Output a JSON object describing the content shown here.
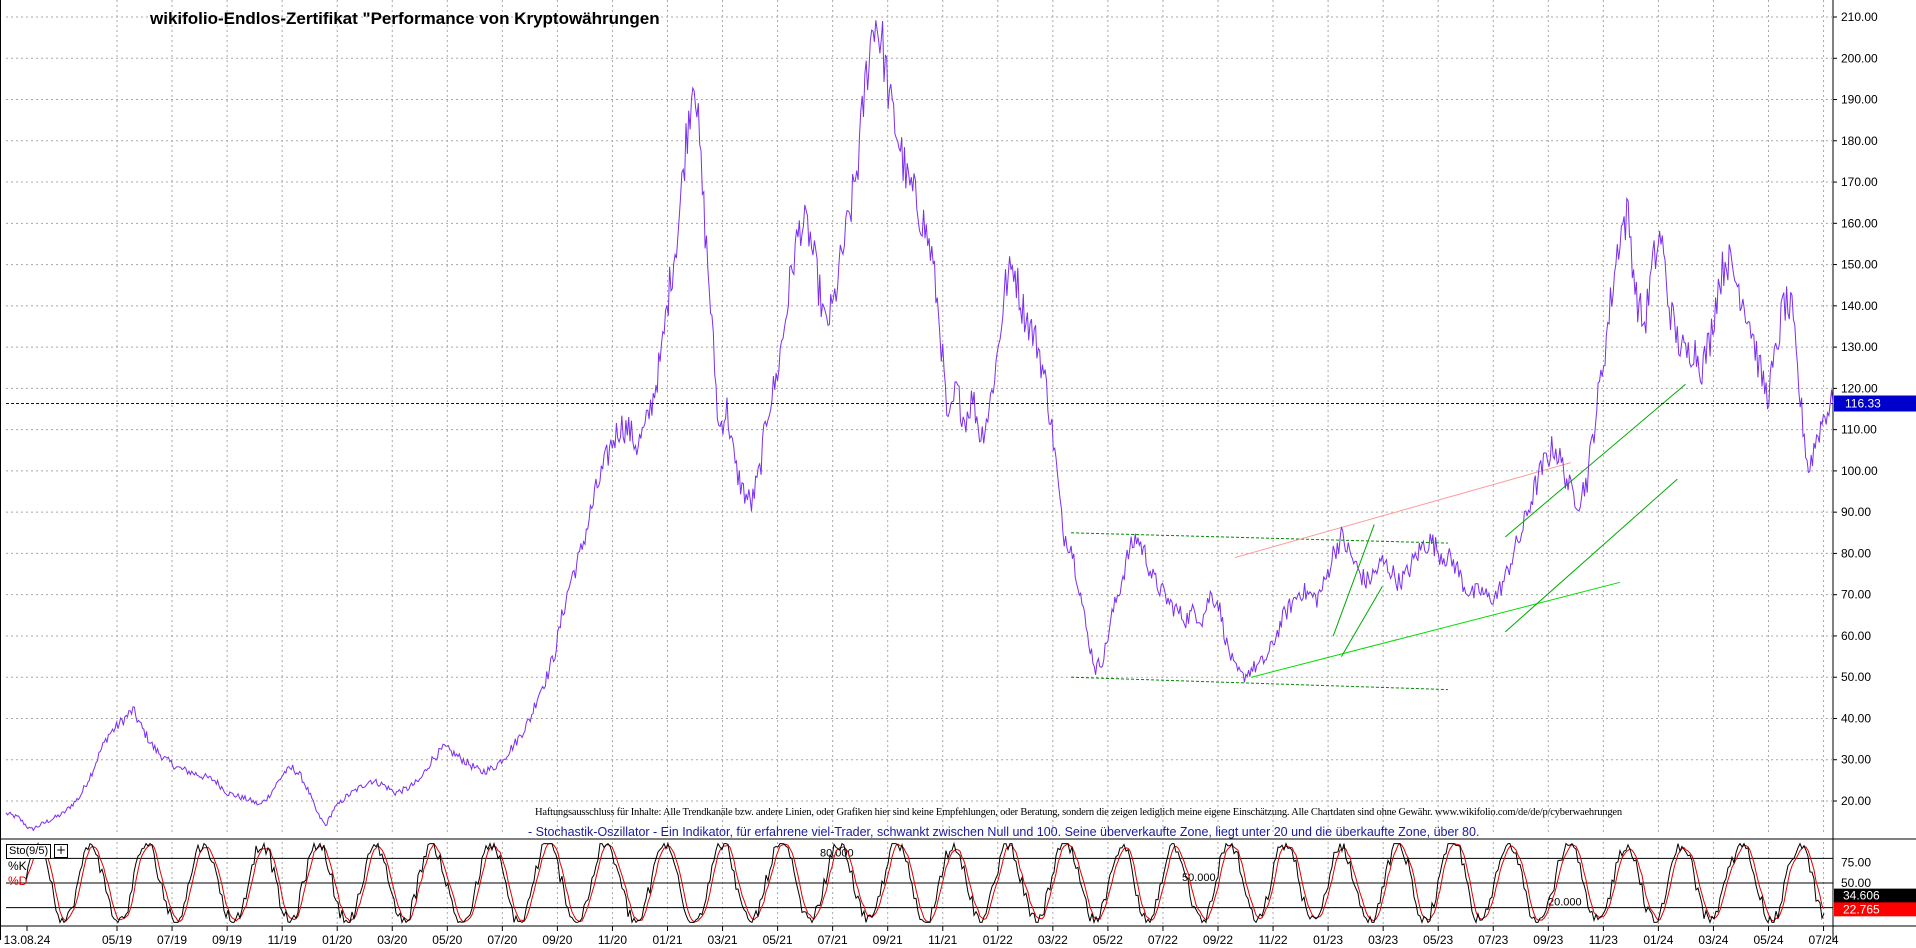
{
  "chart_data": [
    {
      "type": "line",
      "title": "wikifolio-Endlos-Zertifikat \"Performance von Kryptowährungen",
      "y_ticks": [
        "210.00",
        "200.00",
        "190.00",
        "180.00",
        "170.00",
        "160.00",
        "150.00",
        "140.00",
        "130.00",
        "120.00",
        "110.00",
        "100.00",
        "90.00",
        "80.00",
        "70.00",
        "60.00",
        "50.00",
        "40.00",
        "30.00",
        "20.00"
      ],
      "ylim": [
        10,
        213
      ],
      "grid": true,
      "x_ticks": [
        "13.08.24",
        "05/19",
        "07/19",
        "09/19",
        "11/19",
        "01/20",
        "03/20",
        "05/20",
        "07/20",
        "09/20",
        "11/20",
        "01/21",
        "03/21",
        "05/21",
        "07/21",
        "09/21",
        "11/21",
        "01/22",
        "03/22",
        "05/22",
        "07/22",
        "09/22",
        "11/22",
        "01/23",
        "03/23",
        "05/23",
        "07/23",
        "09/23",
        "11/23",
        "01/24",
        "03/24",
        "05/24",
        "07/24"
      ],
      "last_value_label": "116.33",
      "last_value": 116.33,
      "series": [
        {
          "color": "#7b2ff0",
          "points": [
            [
              0,
              17
            ],
            [
              3,
              16
            ],
            [
              6,
              13
            ],
            [
              10,
              15
            ],
            [
              14,
              17
            ],
            [
              18,
              21
            ],
            [
              21,
              27
            ],
            [
              23,
              32
            ],
            [
              25,
              36
            ],
            [
              27,
              38
            ],
            [
              29,
              40
            ],
            [
              31,
              42
            ],
            [
              33,
              38
            ],
            [
              36,
              33
            ],
            [
              39,
              30
            ],
            [
              42,
              28
            ],
            [
              45,
              27
            ],
            [
              48,
              26
            ],
            [
              51,
              25
            ],
            [
              54,
              22
            ],
            [
              57,
              21
            ],
            [
              60,
              20
            ],
            [
              62,
              19
            ],
            [
              64,
              21
            ],
            [
              66,
              24
            ],
            [
              68,
              27
            ],
            [
              70,
              28
            ],
            [
              72,
              26
            ],
            [
              74,
              22
            ],
            [
              76,
              17
            ],
            [
              78,
              14
            ],
            [
              80,
              18
            ],
            [
              83,
              21
            ],
            [
              86,
              23
            ],
            [
              89,
              25
            ],
            [
              92,
              24
            ],
            [
              95,
              22
            ],
            [
              98,
              23
            ],
            [
              101,
              25
            ],
            [
              104,
              30
            ],
            [
              107,
              33
            ],
            [
              110,
              31
            ],
            [
              113,
              29
            ],
            [
              116,
              27
            ],
            [
              119,
              28
            ],
            [
              122,
              31
            ],
            [
              125,
              35
            ],
            [
              128,
              40
            ],
            [
              130,
              46
            ],
            [
              132,
              50
            ],
            [
              134,
              56
            ],
            [
              136,
              66
            ],
            [
              138,
              74
            ],
            [
              140,
              79
            ],
            [
              142,
              87
            ],
            [
              144,
              95
            ],
            [
              146,
              101
            ],
            [
              148,
              107
            ],
            [
              150,
              111
            ],
            [
              152,
              110
            ],
            [
              154,
              106
            ],
            [
              156,
              110
            ],
            [
              158,
              118
            ],
            [
              160,
              128
            ],
            [
              162,
              145
            ],
            [
              164,
              158
            ],
            [
              166,
              180
            ],
            [
              168,
              198
            ],
            [
              170,
              168
            ],
            [
              172,
              140
            ],
            [
              174,
              110
            ],
            [
              176,
              115
            ],
            [
              178,
              101
            ],
            [
              180,
              95
            ],
            [
              182,
              92
            ],
            [
              184,
              100
            ],
            [
              186,
              115
            ],
            [
              188,
              122
            ],
            [
              190,
              135
            ],
            [
              192,
              150
            ],
            [
              194,
              160
            ],
            [
              196,
              158
            ],
            [
              198,
              147
            ],
            [
              200,
              135
            ],
            [
              202,
              140
            ],
            [
              204,
              152
            ],
            [
              206,
              162
            ],
            [
              208,
              175
            ],
            [
              210,
              196
            ],
            [
              212,
              210
            ],
            [
              214,
              203
            ],
            [
              216,
              188
            ],
            [
              218,
              180
            ],
            [
              220,
              170
            ],
            [
              222,
              166
            ],
            [
              224,
              160
            ],
            [
              226,
              152
            ],
            [
              228,
              135
            ],
            [
              230,
              110
            ],
            [
              232,
              120
            ],
            [
              234,
              112
            ],
            [
              236,
              118
            ],
            [
              238,
              108
            ],
            [
              240,
              115
            ],
            [
              242,
              128
            ],
            [
              244,
              145
            ],
            [
              246,
              150
            ],
            [
              248,
              140
            ],
            [
              250,
              135
            ],
            [
              252,
              130
            ],
            [
              254,
              120
            ],
            [
              256,
              105
            ],
            [
              258,
              85
            ],
            [
              260,
              82
            ],
            [
              262,
              72
            ],
            [
              264,
              60
            ],
            [
              266,
              52
            ],
            [
              268,
              55
            ],
            [
              270,
              65
            ],
            [
              272,
              72
            ],
            [
              274,
              80
            ],
            [
              276,
              84
            ],
            [
              278,
              80
            ],
            [
              280,
              74
            ],
            [
              282,
              71
            ],
            [
              284,
              68
            ],
            [
              286,
              66
            ],
            [
              288,
              64
            ],
            [
              290,
              66
            ],
            [
              292,
              64
            ],
            [
              294,
              70
            ],
            [
              296,
              68
            ],
            [
              298,
              58
            ],
            [
              300,
              52
            ],
            [
              302,
              50
            ],
            [
              304,
              52
            ],
            [
              306,
              53
            ],
            [
              308,
              55
            ],
            [
              310,
              60
            ],
            [
              312,
              65
            ],
            [
              314,
              68
            ],
            [
              316,
              71
            ],
            [
              318,
              70
            ],
            [
              320,
              69
            ],
            [
              322,
              73
            ],
            [
              324,
              80
            ],
            [
              326,
              84
            ],
            [
              328,
              80
            ],
            [
              330,
              76
            ],
            [
              332,
              73
            ],
            [
              334,
              75
            ],
            [
              336,
              78
            ],
            [
              338,
              76
            ],
            [
              340,
              73
            ],
            [
              342,
              75
            ],
            [
              344,
              79
            ],
            [
              346,
              82
            ],
            [
              348,
              83
            ],
            [
              350,
              80
            ],
            [
              352,
              79
            ],
            [
              354,
              77
            ],
            [
              356,
              72
            ],
            [
              358,
              70
            ],
            [
              360,
              71
            ],
            [
              362,
              69
            ],
            [
              364,
              70
            ],
            [
              366,
              74
            ],
            [
              368,
              80
            ],
            [
              370,
              85
            ],
            [
              372,
              92
            ],
            [
              374,
              98
            ],
            [
              376,
              103
            ],
            [
              378,
              106
            ],
            [
              380,
              101
            ],
            [
              382,
              95
            ],
            [
              384,
              93
            ],
            [
              386,
              98
            ],
            [
              388,
              113
            ],
            [
              390,
              127
            ],
            [
              392,
              143
            ],
            [
              394,
              158
            ],
            [
              396,
              162
            ],
            [
              398,
              142
            ],
            [
              400,
              135
            ],
            [
              402,
              150
            ],
            [
              404,
              157
            ],
            [
              406,
              140
            ],
            [
              408,
              132
            ],
            [
              410,
              128
            ],
            [
              412,
              130
            ],
            [
              414,
              125
            ],
            [
              416,
              132
            ],
            [
              418,
              145
            ],
            [
              420,
              152
            ],
            [
              422,
              147
            ],
            [
              424,
              142
            ],
            [
              426,
              135
            ],
            [
              428,
              125
            ],
            [
              430,
              118
            ],
            [
              432,
              128
            ],
            [
              434,
              141
            ],
            [
              436,
              138
            ],
            [
              438,
              117
            ],
            [
              440,
              100
            ],
            [
              442,
              108
            ],
            [
              444,
              114
            ],
            [
              446,
              116.33
            ]
          ]
        }
      ],
      "reference_line": {
        "y": 116.33,
        "color": "#0000cc",
        "style": "dashed"
      },
      "trend_lines": [
        {
          "color": "#008800",
          "style": "dashed",
          "from": [
            260,
            85
          ],
          "to": [
            352,
            82.5
          ]
        },
        {
          "color": "#008800",
          "style": "dashed",
          "from": [
            260,
            50
          ],
          "to": [
            352,
            47
          ]
        },
        {
          "color": "#00dd00",
          "style": "solid",
          "from": [
            304,
            50
          ],
          "to": [
            394,
            73
          ]
        },
        {
          "color": "#00aa00",
          "style": "solid",
          "from": [
            324,
            60
          ],
          "to": [
            334,
            87
          ]
        },
        {
          "color": "#00aa00",
          "style": "solid",
          "from": [
            326,
            55
          ],
          "to": [
            336,
            72
          ]
        },
        {
          "color": "#00aa00",
          "style": "solid",
          "from": [
            366,
            84
          ],
          "to": [
            410,
            121
          ]
        },
        {
          "color": "#00aa00",
          "style": "solid",
          "from": [
            366,
            61
          ],
          "to": [
            408,
            98
          ]
        },
        {
          "color": "#ff9999",
          "style": "solid",
          "from": [
            300,
            79
          ],
          "to": [
            382,
            102
          ]
        }
      ]
    },
    {
      "type": "line",
      "title": "Sto(9/5)",
      "ylim": [
        0,
        100
      ],
      "y_ticks": [
        "75.00",
        "50.00"
      ],
      "level_labels": [
        "80.000",
        "50.000",
        "20.000"
      ],
      "levels": [
        80,
        50,
        20
      ],
      "last_k_label": "34.606",
      "last_d_label": "22.765",
      "last_k": 34.606,
      "last_d": 22.765,
      "series": [
        {
          "name": "%K",
          "color": "#000000",
          "period": 9
        },
        {
          "name": "%D",
          "color": "#e00000",
          "period": 5
        }
      ]
    }
  ],
  "texts": {
    "disclaimer": "Haftungsausschluss für Inhalte: Alle Trendkanäle bzw. andere Linien, oder Grafiken hier sind keine Empfehlungen, oder Beratung, sondern die zeigen lediglich meine eigene Einschätzung. Alle Chartdaten sind ohne Gewähr.  www.wikifolio.com/de/de/p/cyberwaehrungen",
    "indicator_description": "- Stochastik-Oszillator - Ein Indikator, für erfahrene viel-Trader, schwankt zwischen Null und 100. Seine überverkaufte Zone, liegt unter 20 und die überkaufte Zone, über 80.",
    "sto_label": "Sto(9/5)",
    "expand_symbol": "+",
    "k_label": "%K",
    "d_label": "%D"
  },
  "colors": {
    "price_line": "#7b2ff0",
    "grid": "#a8a8a8",
    "price_marker_bg": "#0000cc",
    "k_marker_bg": "#000000",
    "d_marker_bg": "#ff0000"
  }
}
